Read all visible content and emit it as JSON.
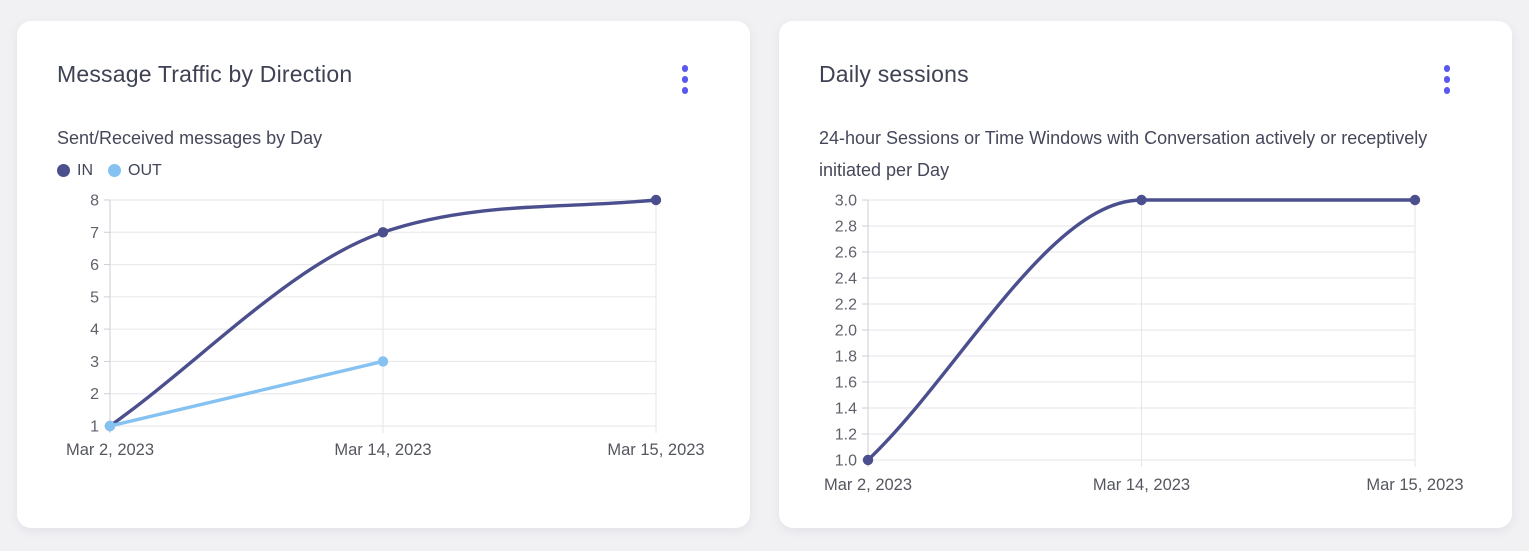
{
  "page": {
    "background_color": "#f1f1f4",
    "card_background_color": "#ffffff",
    "accent_color": "#5b58f0"
  },
  "cards": [
    {
      "title": "Message Traffic by Direction",
      "subtitle": "Sent/Received messages by Day",
      "menu_icon": "kebab-menu-icon"
    },
    {
      "title": "Daily sessions",
      "subtitle": "24-hour Sessions or Time Windows with Conversation actively or receptively initiated per Day",
      "menu_icon": "kebab-menu-icon"
    }
  ],
  "chart_data": [
    {
      "type": "line",
      "title": "Message Traffic by Direction",
      "subtitle": "Sent/Received messages by Day",
      "xlabel": "",
      "ylabel": "",
      "categories": [
        "Mar 2, 2023",
        "Mar 14, 2023",
        "Mar 15, 2023"
      ],
      "series": [
        {
          "name": "IN",
          "color": "#4b4f8e",
          "values": [
            1,
            7,
            8
          ]
        },
        {
          "name": "OUT",
          "color": "#85c2f2",
          "values": [
            1,
            3,
            null
          ]
        }
      ],
      "ylim": [
        1,
        8
      ],
      "ytick_values": [
        1,
        2,
        3,
        4,
        5,
        6,
        7,
        8
      ],
      "ytick_labels": [
        "1",
        "2",
        "3",
        "4",
        "5",
        "6",
        "7",
        "8"
      ],
      "grid": true,
      "legend_position": "top-left",
      "curve": "monotone",
      "grid_color": "#e6e6ea",
      "axis_color": "#cdced4"
    },
    {
      "type": "line",
      "title": "Daily sessions",
      "subtitle": "24-hour Sessions or Time Windows with Conversation actively or receptively initiated per Day",
      "xlabel": "",
      "ylabel": "",
      "categories": [
        "Mar 2, 2023",
        "Mar 14, 2023",
        "Mar 15, 2023"
      ],
      "series": [
        {
          "name": "Daily sessions",
          "color": "#4b4f8e",
          "values": [
            1.0,
            3.0,
            3.0
          ]
        }
      ],
      "ylim": [
        1.0,
        3.0
      ],
      "ytick_values": [
        1.0,
        1.2,
        1.4,
        1.6,
        1.8,
        2.0,
        2.2,
        2.4,
        2.6,
        2.8,
        3.0
      ],
      "ytick_labels": [
        "1.0",
        "1.2",
        "1.4",
        "1.6",
        "1.8",
        "2.0",
        "2.2",
        "2.4",
        "2.6",
        "2.8",
        "3.0"
      ],
      "grid": true,
      "legend_position": "none",
      "curve": "monotone",
      "grid_color": "#e6e6ea",
      "axis_color": "#cdced4"
    }
  ]
}
